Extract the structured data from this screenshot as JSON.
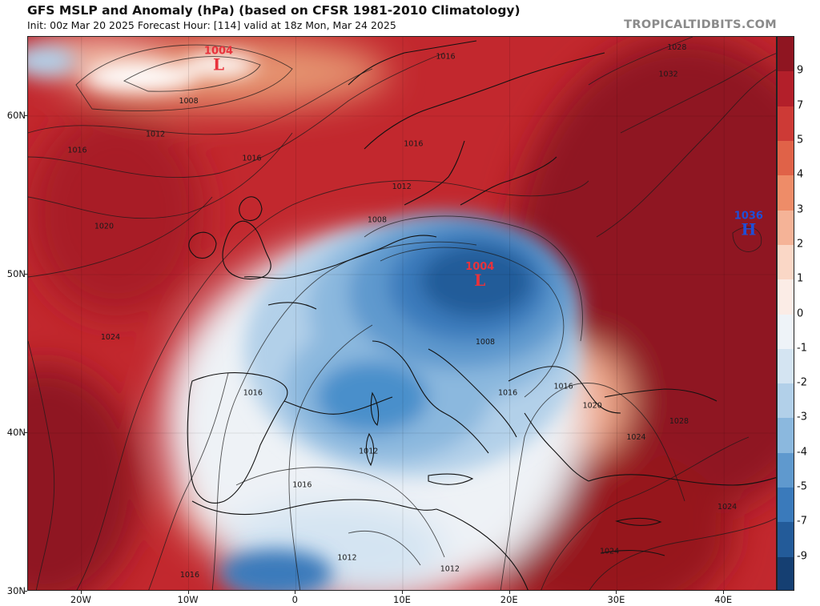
{
  "header": {
    "title": "GFS MSLP and Anomaly (hPa) (based on CFSR 1981-2010 Climatology)",
    "subtitle": "Init: 00z Mar 20 2025   Forecast Hour: [114]   valid at 18z Mon, Mar 24 2025",
    "credit": "TROPICALTIDBITS.COM"
  },
  "map": {
    "extent": {
      "lon_min": -25,
      "lon_max": 45,
      "lat_min": 30,
      "lat_max": 65
    },
    "lat_ticks": [
      "30N",
      "40N",
      "50N",
      "60N"
    ],
    "lon_ticks": [
      "20W",
      "10W",
      "0",
      "10E",
      "20E",
      "30E",
      "40E"
    ],
    "centers": [
      {
        "type": "L",
        "value": "1004",
        "color": "#e8323c",
        "lon": -7.2,
        "lat": 63.3
      },
      {
        "type": "L",
        "value": "1004",
        "color": "#e8323c",
        "lon": 17.2,
        "lat": 49.7
      },
      {
        "type": "H",
        "value": "1036",
        "color": "#1e4fd8",
        "lon": 42.3,
        "lat": 52.9
      }
    ],
    "isobar_labels": [
      {
        "text": "1008",
        "lon": -10,
        "lat": 60.8
      },
      {
        "text": "1012",
        "lon": -13.1,
        "lat": 58.7
      },
      {
        "text": "1016",
        "lon": -20.4,
        "lat": 57.7
      },
      {
        "text": "1020",
        "lon": -17.9,
        "lat": 52.9
      },
      {
        "text": "1024",
        "lon": -17.3,
        "lat": 45.9
      },
      {
        "text": "1016",
        "lon": -4.1,
        "lat": 57.2
      },
      {
        "text": "1016",
        "lon": 14.0,
        "lat": 63.6
      },
      {
        "text": "1016",
        "lon": 11.0,
        "lat": 58.1
      },
      {
        "text": "1012",
        "lon": 9.9,
        "lat": 55.4
      },
      {
        "text": "1008",
        "lon": 7.6,
        "lat": 53.3
      },
      {
        "text": "1008",
        "lon": 17.7,
        "lat": 45.6
      },
      {
        "text": "1016",
        "lon": 25.0,
        "lat": 42.8
      },
      {
        "text": "1016",
        "lon": 19.8,
        "lat": 42.4
      },
      {
        "text": "1020",
        "lon": 27.7,
        "lat": 41.6
      },
      {
        "text": "1024",
        "lon": 31.8,
        "lat": 39.6
      },
      {
        "text": "1028",
        "lon": 35.8,
        "lat": 40.6
      },
      {
        "text": "1028",
        "lon": 35.6,
        "lat": 64.2
      },
      {
        "text": "1032",
        "lon": 34.8,
        "lat": 62.5
      },
      {
        "text": "1016",
        "lon": -4.0,
        "lat": 42.4
      },
      {
        "text": "1012",
        "lon": 6.8,
        "lat": 38.7
      },
      {
        "text": "1016",
        "lon": 0.6,
        "lat": 36.6
      },
      {
        "text": "1012",
        "lon": 4.8,
        "lat": 32.0
      },
      {
        "text": "1012",
        "lon": 14.4,
        "lat": 31.3
      },
      {
        "text": "1016",
        "lon": -9.9,
        "lat": 30.9
      },
      {
        "text": "1024",
        "lon": 40.3,
        "lat": 35.2
      },
      {
        "text": "1024",
        "lon": 29.3,
        "lat": 32.4
      }
    ],
    "colors": {
      "ocean_warm": "#c2282e",
      "deep_red": "#8f1521",
      "neutral": "#f6efe9",
      "blue_mid": "#4a8fcb",
      "blue_deep": "#1b4f8e",
      "coastline": "#111111"
    }
  },
  "colorbar": {
    "labels": [
      "9",
      "7",
      "5",
      "4",
      "3",
      "2",
      "1",
      "0",
      "-1",
      "-2",
      "-3",
      "-4",
      "-5",
      "-7",
      "-9"
    ],
    "colors": [
      "#8f1521",
      "#b31f2a",
      "#cd3a36",
      "#e06248",
      "#ee8c68",
      "#f5b397",
      "#fad7c6",
      "#fbece6",
      "#eef3f8",
      "#d4e4f2",
      "#b2d0e9",
      "#8bb8de",
      "#5f99ce",
      "#3a7abb",
      "#235b99",
      "#153f72"
    ]
  }
}
